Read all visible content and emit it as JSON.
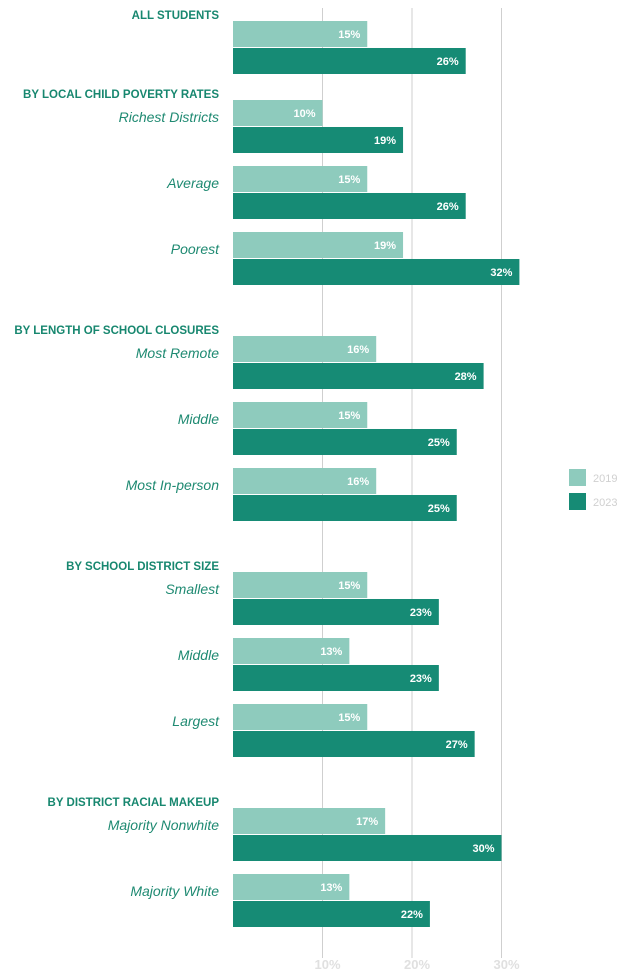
{
  "chart_data": {
    "type": "bar",
    "orientation": "horizontal",
    "xlim": [
      0,
      35
    ],
    "x_ticks": [
      {
        "value": 10,
        "label": "10%"
      },
      {
        "value": 20,
        "label": "20%"
      },
      {
        "value": 30,
        "label": "30%"
      }
    ],
    "grid": true,
    "legend_position": "right",
    "series": [
      {
        "name": "2019",
        "color": "#8ecbbd"
      },
      {
        "name": "2023",
        "color": "#168b75"
      }
    ],
    "groups": [
      {
        "title": "ALL STUDENTS",
        "rows": [
          {
            "label": "",
            "values": [
              15,
              26
            ],
            "labels": [
              "15%",
              "26%"
            ]
          }
        ]
      },
      {
        "title": "BY LOCAL CHILD POVERTY RATES",
        "rows": [
          {
            "label": "Richest Districts",
            "values": [
              10,
              19
            ],
            "labels": [
              "10%",
              "19%"
            ]
          },
          {
            "label": "Average",
            "values": [
              15,
              26
            ],
            "labels": [
              "15%",
              "26%"
            ]
          },
          {
            "label": "Poorest",
            "values": [
              19,
              32
            ],
            "labels": [
              "19%",
              "32%"
            ]
          }
        ]
      },
      {
        "title": "BY LENGTH OF SCHOOL CLOSURES",
        "rows": [
          {
            "label": "Most Remote",
            "values": [
              16,
              28
            ],
            "labels": [
              "16%",
              "28%"
            ]
          },
          {
            "label": "Middle",
            "values": [
              15,
              25
            ],
            "labels": [
              "15%",
              "25%"
            ]
          },
          {
            "label": "Most In-person",
            "values": [
              16,
              25
            ],
            "labels": [
              "16%",
              "25%"
            ]
          }
        ]
      },
      {
        "title": "BY SCHOOL DISTRICT SIZE",
        "rows": [
          {
            "label": "Smallest",
            "values": [
              15,
              23
            ],
            "labels": [
              "15%",
              "23%"
            ]
          },
          {
            "label": "Middle",
            "values": [
              13,
              23
            ],
            "labels": [
              "13%",
              "23%"
            ]
          },
          {
            "label": "Largest",
            "values": [
              15,
              27
            ],
            "labels": [
              "15%",
              "27%"
            ]
          }
        ]
      },
      {
        "title": "BY DISTRICT RACIAL MAKEUP",
        "rows": [
          {
            "label": "Majority Nonwhite",
            "values": [
              17,
              30
            ],
            "labels": [
              "17%",
              "30%"
            ]
          },
          {
            "label": "Majority White",
            "values": [
              13,
              22
            ],
            "labels": [
              "13%",
              "22%"
            ]
          }
        ]
      }
    ]
  }
}
